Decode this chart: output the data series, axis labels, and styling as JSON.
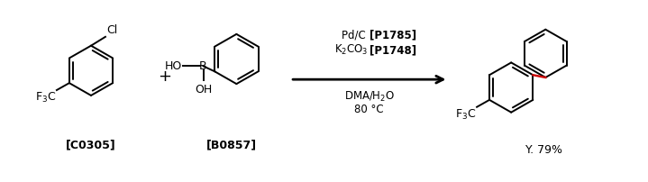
{
  "background_color": "#ffffff",
  "figure_width": 7.19,
  "figure_height": 2.02,
  "dpi": 100,
  "label_c0305": "[C0305]",
  "label_b0857": "[B0857]",
  "label_yield": "Y. 79%",
  "plus_sign": "+",
  "line_color": "#000000",
  "arrow_color": "#000000",
  "red_bond_color": "#cc0000",
  "font_size_labels": 9,
  "font_size_reagents": 8.5,
  "reagent_line1_normal": "Pd/C ",
  "reagent_line1_bold": "[P1785]",
  "reagent_line2_normal": "K₂CO₃ ",
  "reagent_line2_bold": "[P1748]",
  "reagent_line3": "DMA/H₂O",
  "reagent_line4": "80 °C"
}
